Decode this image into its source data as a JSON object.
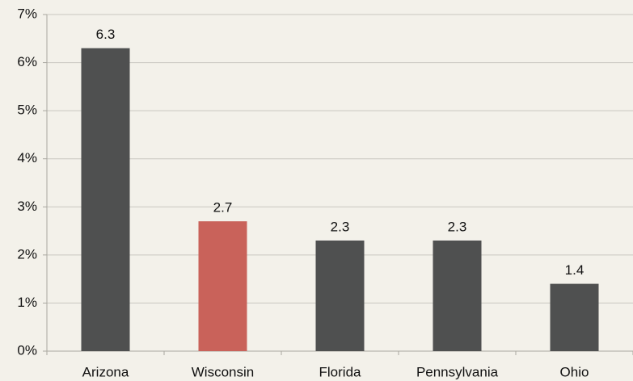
{
  "chart_data": {
    "type": "bar",
    "categories": [
      "Arizona",
      "Wisconsin",
      "Florida",
      "Pennsylvania",
      "Ohio"
    ],
    "values": [
      6.3,
      2.7,
      2.3,
      2.3,
      1.4
    ],
    "colors": [
      "#4f5050",
      "#c9625a",
      "#4f5050",
      "#4f5050",
      "#4f5050"
    ],
    "ylim": [
      0,
      7
    ],
    "yticks": [
      {
        "value": 0,
        "label": "0%"
      },
      {
        "value": 1,
        "label": "1%"
      },
      {
        "value": 2,
        "label": "2%"
      },
      {
        "value": 3,
        "label": "3%"
      },
      {
        "value": 4,
        "label": "4%"
      },
      {
        "value": 5,
        "label": "5%"
      },
      {
        "value": 6,
        "label": "6%"
      },
      {
        "value": 7,
        "label": "7%"
      }
    ],
    "grid": true
  }
}
